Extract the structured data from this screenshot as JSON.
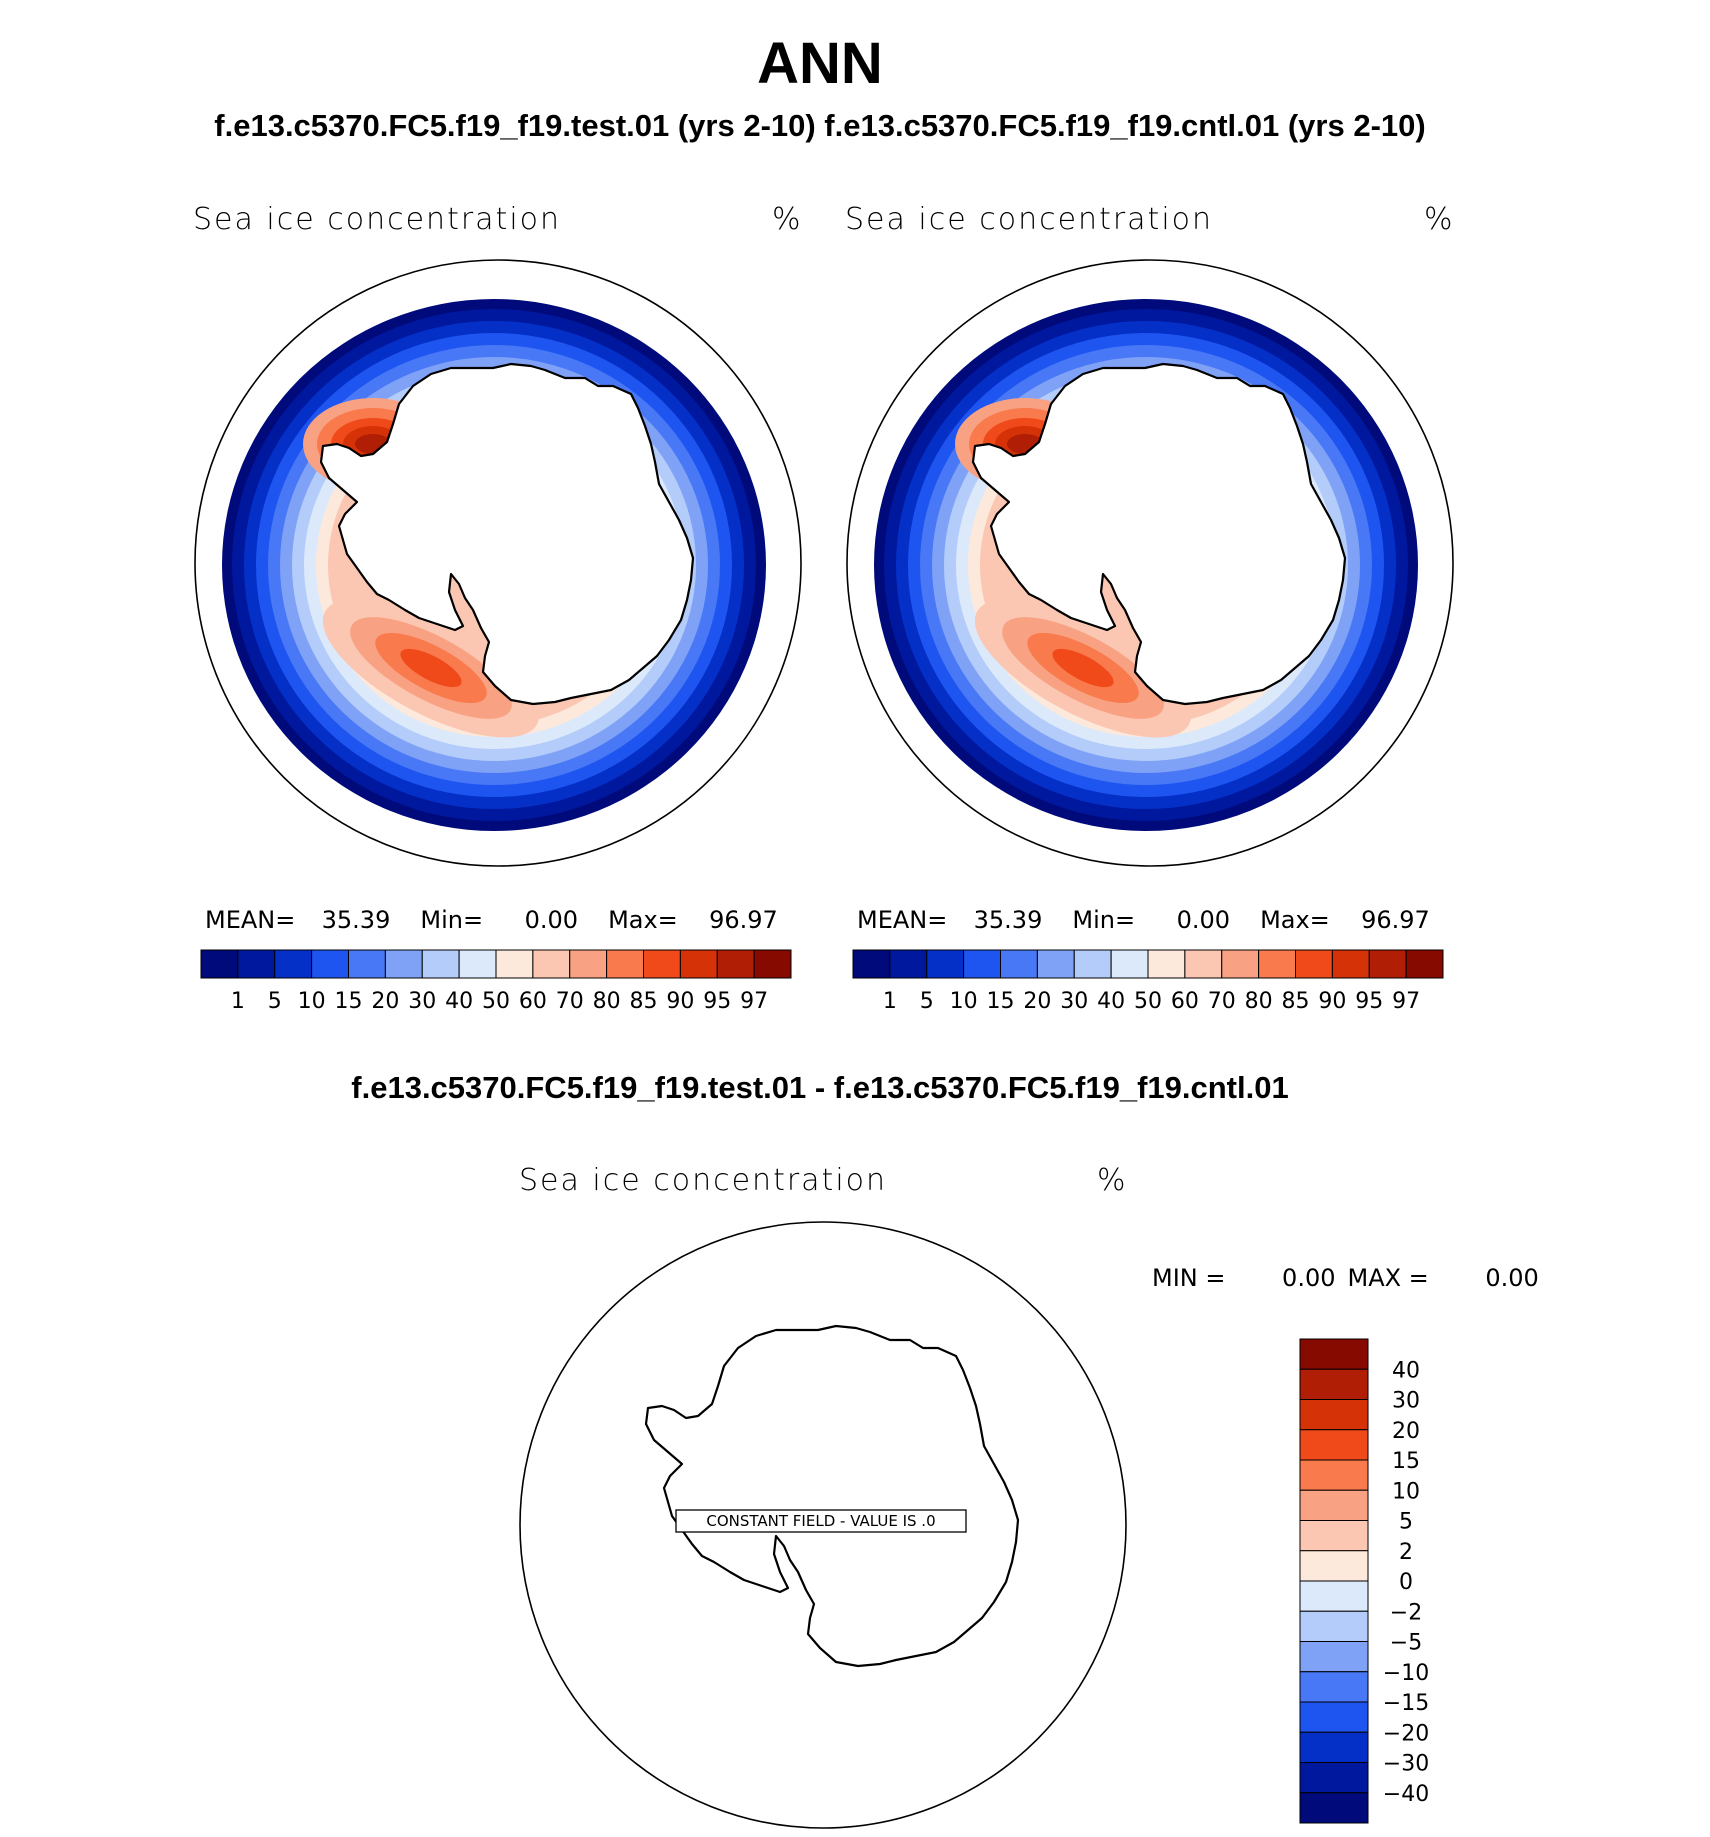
{
  "figure": {
    "title": "ANN",
    "subtitle": "f.e13.c5370.FC5.f19_f19.test.01 (yrs 2-10) f.e13.c5370.FC5.f19_f19.cntl.01 (yrs 2-10)",
    "diff_title": "f.e13.c5370.FC5.f19_f19.test.01 - f.e13.c5370.FC5.f19_f19.cntl.01"
  },
  "panels": [
    {
      "id": "test",
      "variable": "Sea ice concentration",
      "units": "%",
      "mean_label": "MEAN=",
      "mean": "35.39",
      "min_label": "Min=",
      "min": "0.00",
      "max_label": "Max=",
      "max": "96.97"
    },
    {
      "id": "cntl",
      "variable": "Sea ice concentration",
      "units": "%",
      "mean_label": "MEAN=",
      "mean": "35.39",
      "min_label": "Min=",
      "min": "0.00",
      "max_label": "Max=",
      "max": "96.97"
    }
  ],
  "diff_panel": {
    "variable": "Sea ice concentration",
    "units": "%",
    "min_label": "MIN =",
    "min": "0.00",
    "max_label": "MAX =",
    "max": "0.00",
    "constant_field_text": "CONSTANT FIELD - VALUE IS .0"
  },
  "colorbar_main": {
    "levels": [
      "1",
      "5",
      "10",
      "15",
      "20",
      "30",
      "40",
      "50",
      "60",
      "70",
      "80",
      "85",
      "90",
      "95",
      "97"
    ],
    "colors": [
      "#000a7a",
      "#00189e",
      "#0430c8",
      "#1e55f0",
      "#4878f5",
      "#7fa2f7",
      "#b3ccfa",
      "#dbe9fb",
      "#fde9db",
      "#fbc7b2",
      "#f9a283",
      "#f87a4d",
      "#f04a1a",
      "#d53208",
      "#b01e05",
      "#870a00"
    ]
  },
  "colorbar_diff": {
    "levels": [
      "40",
      "30",
      "20",
      "15",
      "10",
      "5",
      "2",
      "0",
      "−2",
      "−5",
      "−10",
      "−15",
      "−20",
      "−30",
      "−40"
    ],
    "colors": [
      "#870a00",
      "#b01e05",
      "#d53208",
      "#f04a1a",
      "#f87a4d",
      "#f9a283",
      "#fbc7b2",
      "#fde9db",
      "#dbe9fb",
      "#b3ccfa",
      "#7fa2f7",
      "#4878f5",
      "#1e55f0",
      "#0430c8",
      "#00189e",
      "#000a7a"
    ]
  },
  "map_colors": {
    "outline": "#000000",
    "land": "#ffffff"
  }
}
